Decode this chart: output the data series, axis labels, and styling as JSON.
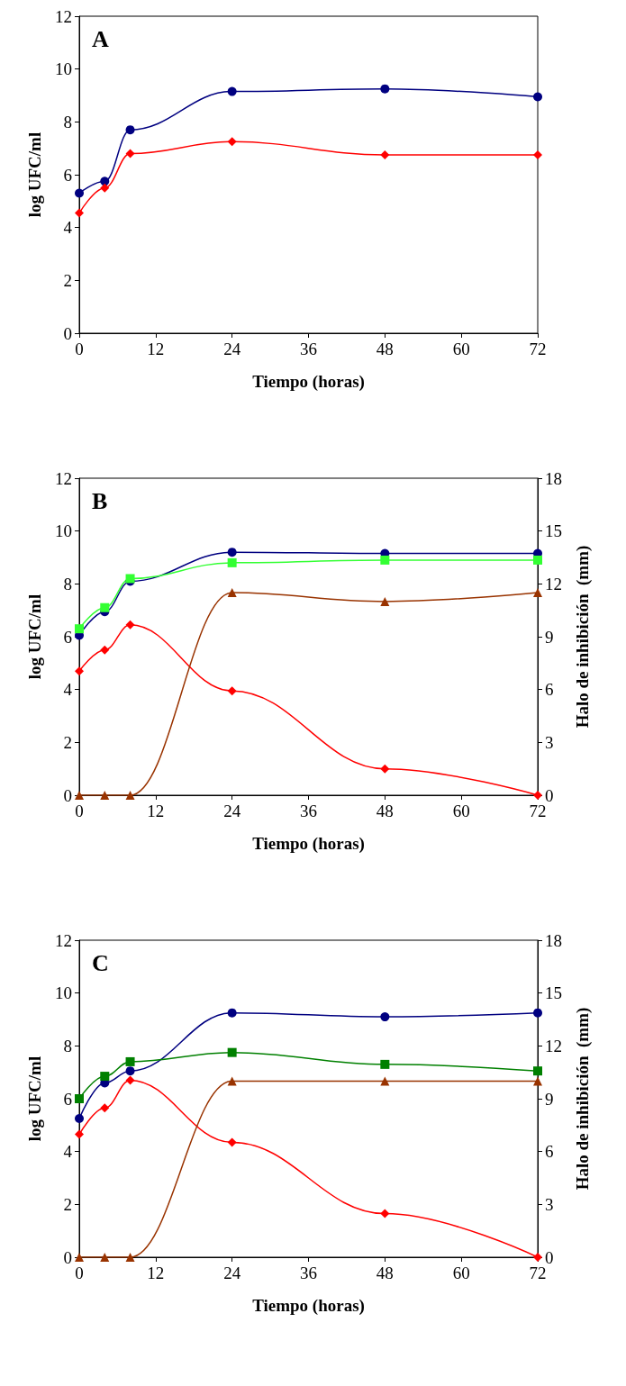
{
  "chart_data": [
    {
      "type": "line",
      "title": "A",
      "xlabel": "Tiempo (horas)",
      "ylabel": "log UFC/ml",
      "x": [
        0,
        4,
        8,
        24,
        48,
        72
      ],
      "xlim": [
        0,
        72
      ],
      "xticks": [
        0,
        12,
        24,
        36,
        48,
        60,
        72
      ],
      "ylim": [
        0,
        12
      ],
      "yticks": [
        0,
        2,
        4,
        6,
        8,
        10,
        12
      ],
      "series": [
        {
          "color": "#000080",
          "marker": "circle",
          "values": [
            5.3,
            5.75,
            7.7,
            9.15,
            9.25,
            8.95
          ]
        },
        {
          "color": "#ff0000",
          "marker": "diamond",
          "values": [
            4.55,
            5.5,
            6.8,
            7.25,
            6.75,
            6.75
          ]
        }
      ]
    },
    {
      "type": "line",
      "title": "B",
      "xlabel": "Tiempo (horas)",
      "ylabel": "log UFC/ml",
      "y2label": "Halo de inhibición  (mm)",
      "x": [
        0,
        4,
        8,
        24,
        48,
        72
      ],
      "xlim": [
        0,
        72
      ],
      "xticks": [
        0,
        12,
        24,
        36,
        48,
        60,
        72
      ],
      "ylim": [
        0,
        12
      ],
      "yticks": [
        0,
        2,
        4,
        6,
        8,
        10,
        12
      ],
      "y2lim": [
        0,
        18
      ],
      "y2ticks": [
        0,
        3,
        6,
        9,
        12,
        15,
        18
      ],
      "series": [
        {
          "color": "#000080",
          "marker": "circle",
          "values": [
            6.05,
            6.95,
            8.1,
            9.2,
            9.15,
            9.15
          ]
        },
        {
          "color": "#33ff33",
          "marker": "square",
          "values": [
            6.3,
            7.1,
            8.2,
            8.8,
            8.9,
            8.9
          ]
        },
        {
          "color": "#ff0000",
          "marker": "diamond",
          "values": [
            4.7,
            5.5,
            6.45,
            3.95,
            1.0,
            0
          ]
        },
        {
          "color": "#993300",
          "marker": "triangle",
          "axis": "y2",
          "values": [
            0,
            0,
            0,
            11.5,
            11.0,
            11.5
          ]
        }
      ]
    },
    {
      "type": "line",
      "title": "C",
      "xlabel": "Tiempo (horas)",
      "ylabel": "log UFC/ml",
      "y2label": "Halo de inhibición  (mm)",
      "x": [
        0,
        4,
        8,
        24,
        48,
        72
      ],
      "xlim": [
        0,
        72
      ],
      "xticks": [
        0,
        12,
        24,
        36,
        48,
        60,
        72
      ],
      "ylim": [
        0,
        12
      ],
      "yticks": [
        0,
        2,
        4,
        6,
        8,
        10,
        12
      ],
      "y2lim": [
        0,
        18
      ],
      "y2ticks": [
        0,
        3,
        6,
        9,
        12,
        15,
        18
      ],
      "series": [
        {
          "color": "#000080",
          "marker": "circle",
          "values": [
            5.25,
            6.6,
            7.05,
            9.25,
            9.1,
            9.25
          ]
        },
        {
          "color": "#008000",
          "marker": "square",
          "values": [
            6.0,
            6.85,
            7.4,
            7.75,
            7.3,
            7.05
          ]
        },
        {
          "color": "#ff0000",
          "marker": "diamond",
          "values": [
            4.65,
            5.65,
            6.7,
            4.35,
            1.65,
            0
          ]
        },
        {
          "color": "#993300",
          "marker": "triangle",
          "axis": "y2",
          "values": [
            0,
            0,
            0,
            10,
            10,
            10
          ]
        }
      ]
    }
  ]
}
